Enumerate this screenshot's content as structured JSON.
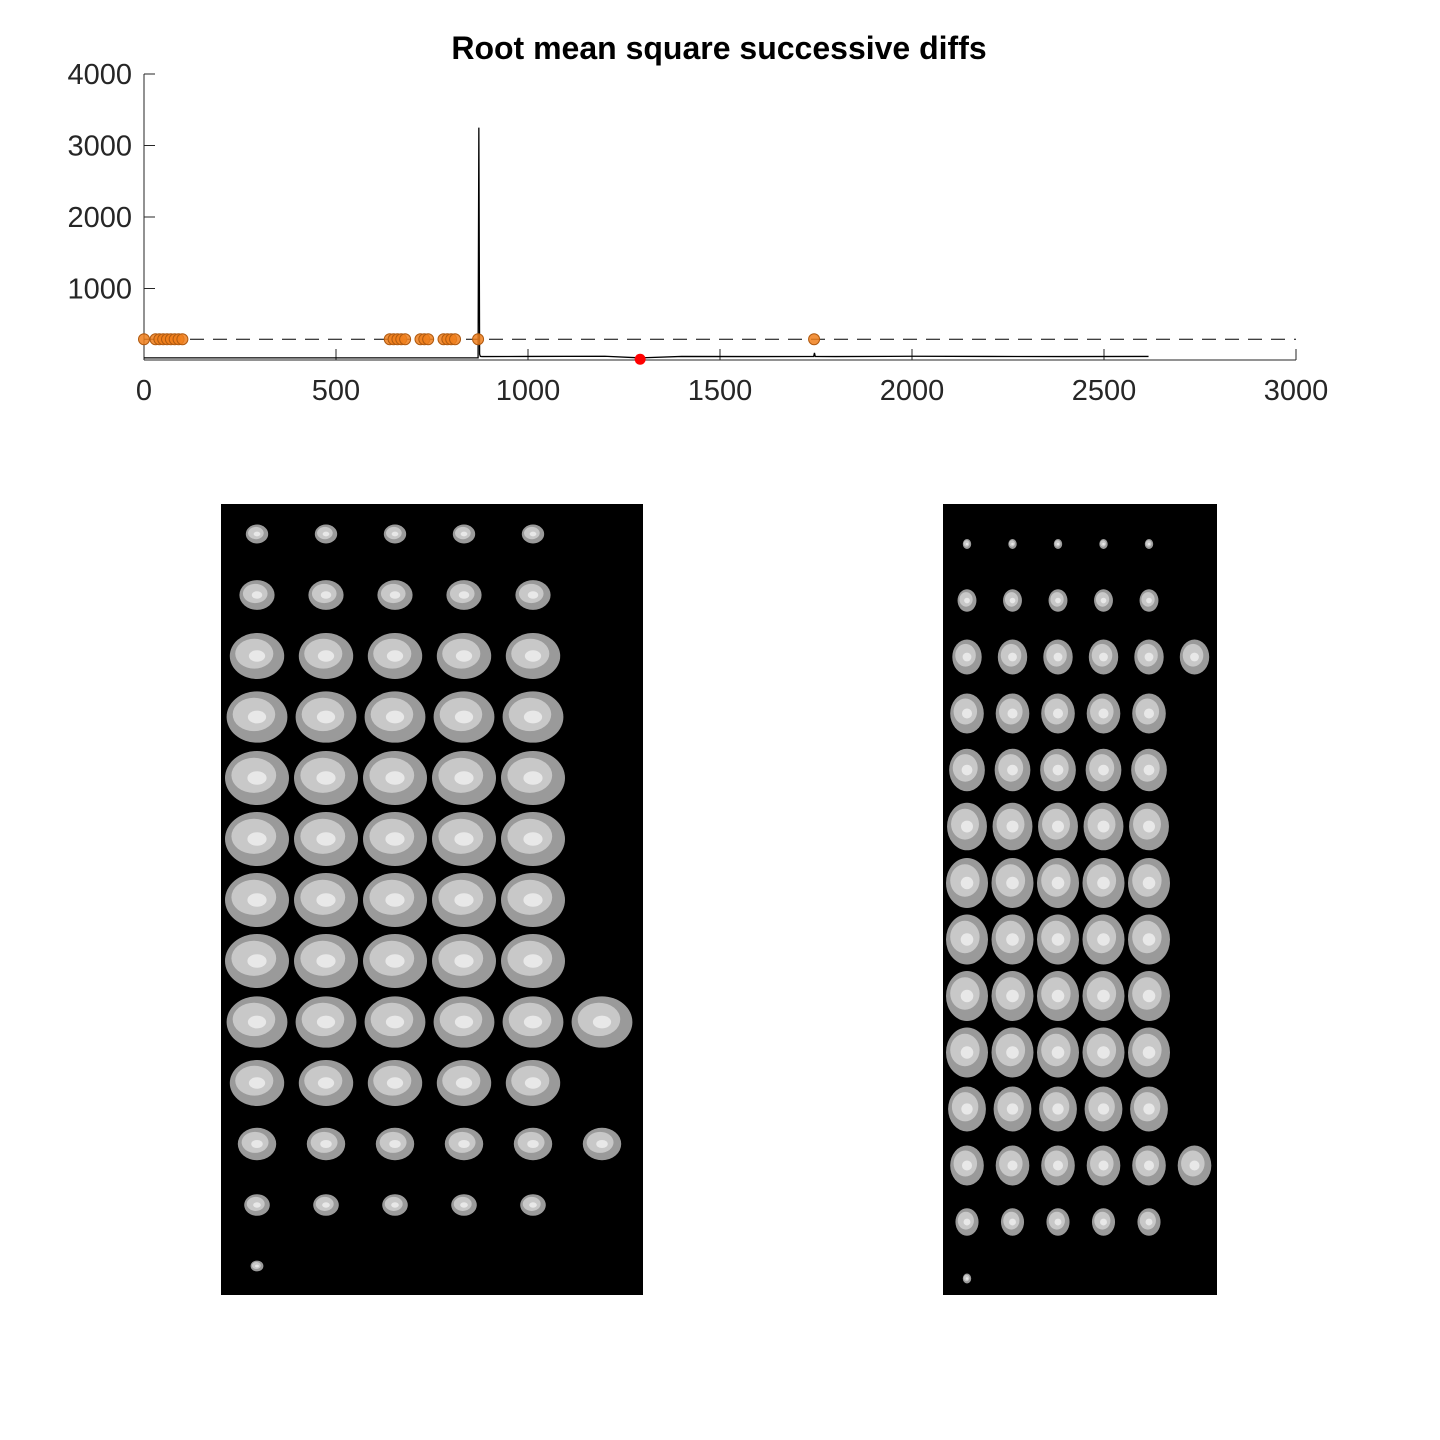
{
  "chart_data": {
    "type": "line",
    "title": "Root mean square successive diffs",
    "xlim": [
      0,
      3000
    ],
    "ylim": [
      0,
      4000
    ],
    "xticks": [
      0,
      500,
      1000,
      1500,
      2000,
      2500,
      3000
    ],
    "xtick_labels": [
      "0",
      "500",
      "1000",
      "1500",
      "2000",
      "2500",
      "3000"
    ],
    "yticks": [
      1000,
      2000,
      3000,
      4000
    ],
    "ytick_labels": [
      "1000",
      "2000",
      "3000",
      "4000"
    ],
    "threshold": 290,
    "series": [
      {
        "x": [
          0,
          870,
          872,
          874,
          876,
          880,
          1000,
          1200,
          1292,
          1400,
          1600,
          1744,
          1746,
          1748,
          1800,
          2000,
          2200,
          2400,
          2616
        ],
        "y": [
          30,
          30,
          3250,
          80,
          50,
          48,
          50,
          52,
          30,
          50,
          48,
          50,
          100,
          50,
          48,
          52,
          50,
          48,
          50
        ],
        "color": "#000000"
      }
    ],
    "outlier_points": {
      "x": [
        0,
        30,
        40,
        50,
        60,
        70,
        80,
        90,
        100,
        640,
        650,
        660,
        670,
        680,
        720,
        730,
        740,
        780,
        790,
        800,
        810,
        870,
        1745
      ],
      "y": [
        290,
        290,
        290,
        290,
        290,
        290,
        290,
        290,
        290,
        290,
        290,
        290,
        290,
        290,
        290,
        290,
        290,
        290,
        290,
        290,
        290,
        290,
        290
      ],
      "color": "#f07f1c"
    },
    "highlight_point": {
      "x": 1292,
      "y": 10,
      "color": "#ff0000"
    },
    "grid": false,
    "legend": "none"
  },
  "figures": {
    "sagittal_montage": {
      "row_counts": [
        5,
        5,
        5,
        5,
        5,
        5,
        5,
        5,
        6,
        5,
        6,
        5,
        1
      ],
      "sizes": [
        0.35,
        0.55,
        0.85,
        0.95,
        1.0,
        1.0,
        1.0,
        1.0,
        0.95,
        0.85,
        0.6,
        0.4,
        0.2
      ]
    },
    "axial_montage": {
      "row_counts": [
        5,
        5,
        6,
        5,
        5,
        5,
        5,
        5,
        5,
        5,
        5,
        6,
        5,
        1
      ],
      "sizes": [
        0.2,
        0.45,
        0.7,
        0.8,
        0.85,
        0.95,
        1.0,
        1.0,
        1.0,
        1.0,
        0.9,
        0.8,
        0.55,
        0.2
      ]
    }
  }
}
